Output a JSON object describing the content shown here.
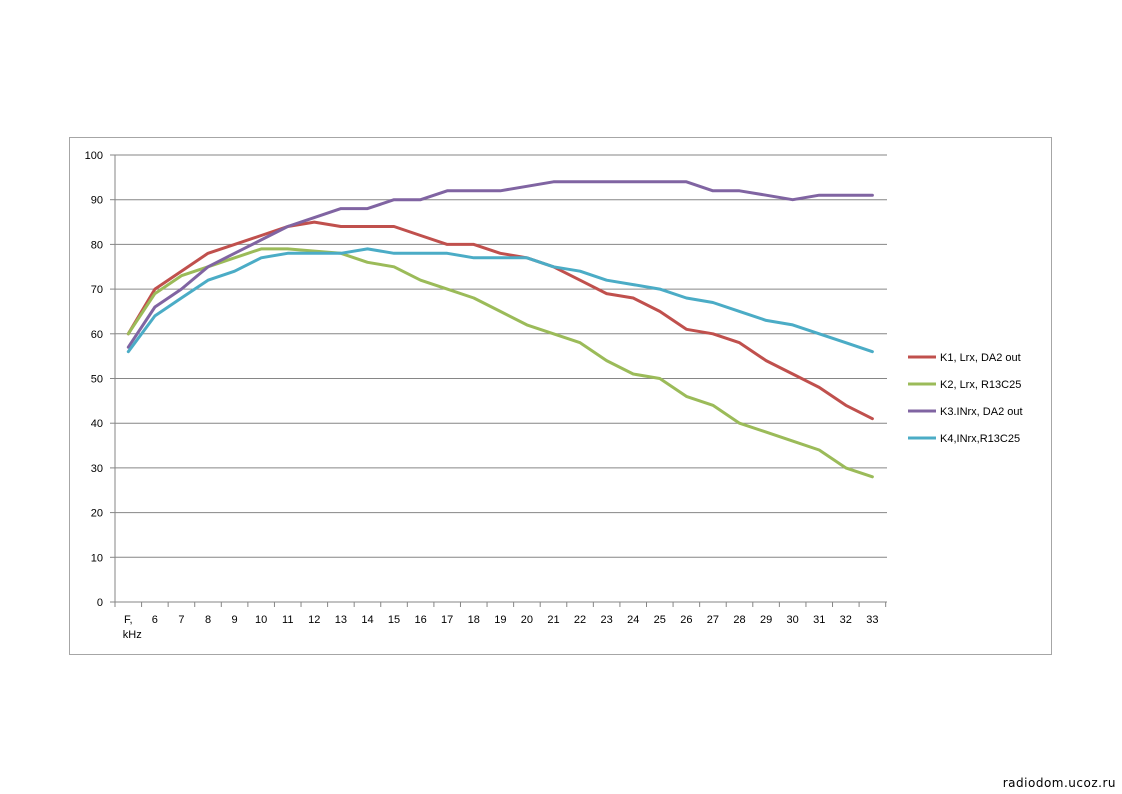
{
  "chart_data": {
    "type": "line",
    "categories": [
      "F,\nkHz",
      "6",
      "7",
      "8",
      "9",
      "10",
      "11",
      "12",
      "13",
      "14",
      "15",
      "16",
      "17",
      "18",
      "19",
      "20",
      "21",
      "22",
      "23",
      "24",
      "25",
      "26",
      "27",
      "28",
      "29",
      "30",
      "31",
      "32",
      "33"
    ],
    "series": [
      {
        "name": "K1, Lrx, DA2 out",
        "color": "#c0504d",
        "values": [
          60,
          70,
          74,
          78,
          80,
          82,
          84,
          85,
          84,
          84,
          84,
          82,
          80,
          80,
          78,
          77,
          75,
          72,
          69,
          68,
          65,
          61,
          60,
          58,
          54,
          51,
          48,
          44,
          41
        ]
      },
      {
        "name": "K2, Lrx, R13C25",
        "color": "#9bbb59",
        "values": [
          60,
          69,
          73,
          75,
          77,
          79,
          79,
          78.5,
          78,
          76,
          75,
          72,
          70,
          68,
          65,
          62,
          60,
          58,
          54,
          51,
          50,
          46,
          44,
          40,
          38,
          36,
          34,
          30,
          28
        ]
      },
      {
        "name": "K3.INrx, DA2 out",
        "color": "#8064a2",
        "values": [
          57,
          66,
          70,
          75,
          78,
          81,
          84,
          86,
          88,
          88,
          90,
          90,
          92,
          92,
          92,
          93,
          94,
          94,
          94,
          94,
          94,
          94,
          92,
          92,
          91,
          90,
          91,
          91,
          91
        ]
      },
      {
        "name": "K4,INrx,R13C25",
        "color": "#4bacc6",
        "values": [
          56,
          64,
          68,
          72,
          74,
          77,
          78,
          78,
          78,
          79,
          78,
          78,
          78,
          77,
          77,
          77,
          75,
          74,
          72,
          71,
          70,
          68,
          67,
          65,
          63,
          62,
          60,
          58,
          56
        ]
      }
    ],
    "y_ticks": [
      0,
      10,
      20,
      30,
      40,
      50,
      60,
      70,
      80,
      90,
      100
    ],
    "ylim": [
      0,
      100
    ],
    "grid": true,
    "legend_position": "right"
  },
  "watermark": "radiodom.ucoz.ru"
}
